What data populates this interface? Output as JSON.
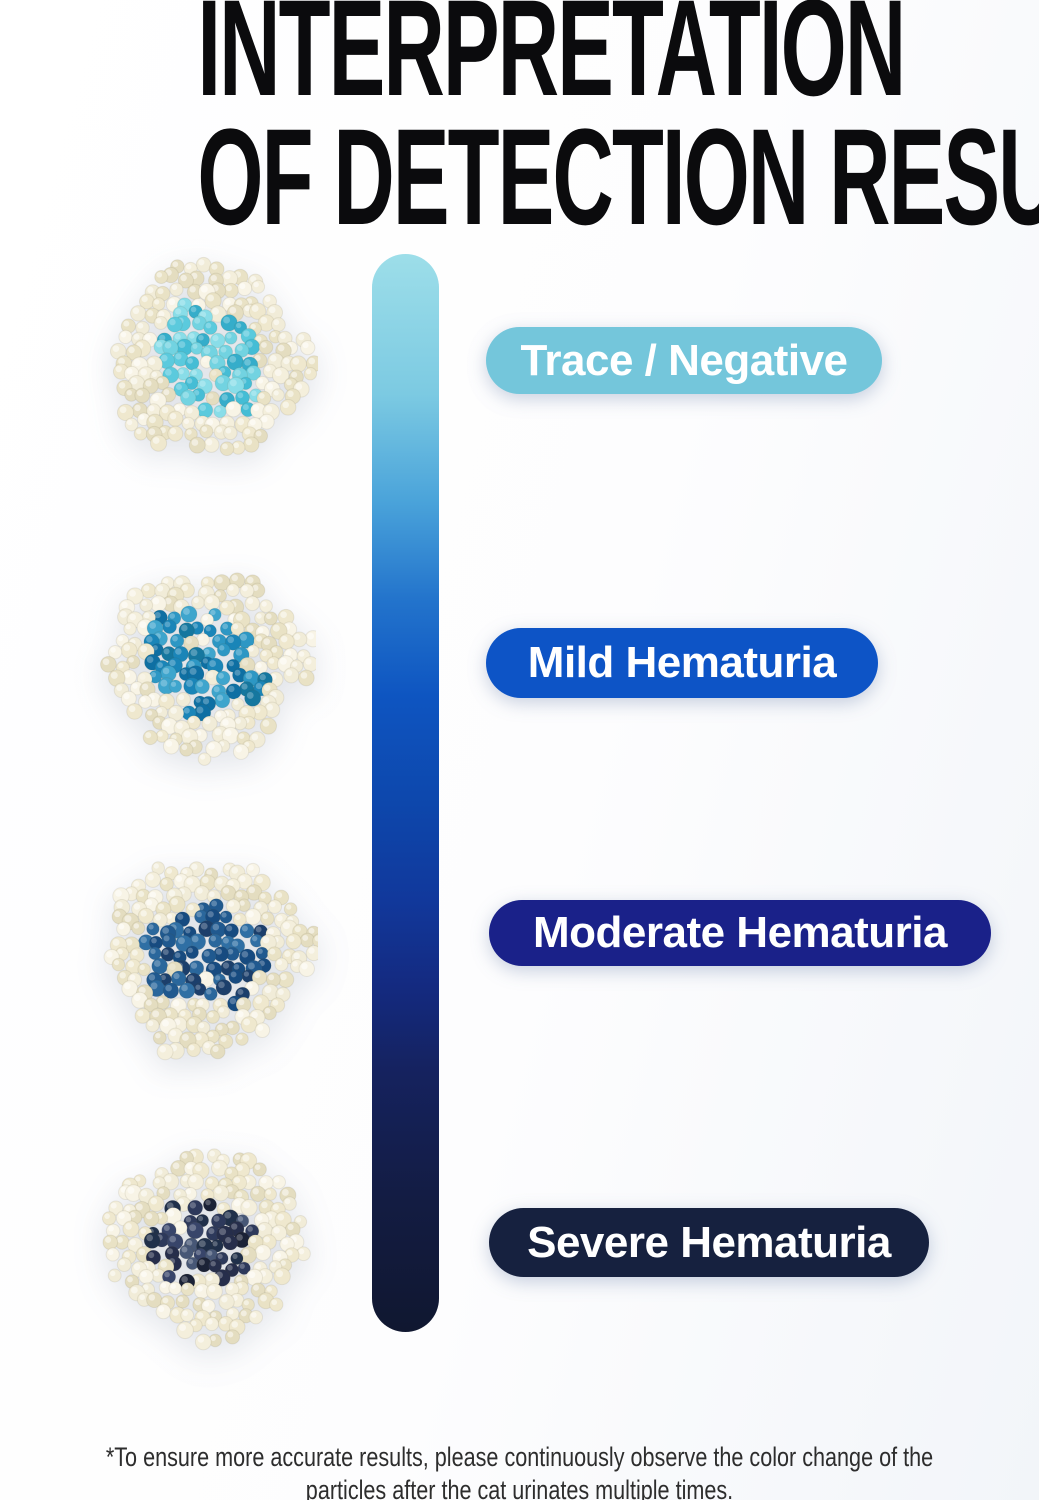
{
  "title": {
    "line1": "INTERPRETATION",
    "line2": "OF DETECTION RESULTS",
    "color": "#0b0b0d"
  },
  "levels": [
    {
      "id": "trace",
      "label": "Trace / Negative",
      "pill_color": "#74c6db",
      "core_colors": [
        "#45bdd5",
        "#5bcadd",
        "#35adca",
        "#72d3e1",
        "#89dde8"
      ]
    },
    {
      "id": "mild",
      "label": "Mild Hematuria",
      "pill_color": "#0d54c6",
      "core_colors": [
        "#1a85b8",
        "#0e6fa3",
        "#2d97c4",
        "#15779f",
        "#3ea5cd"
      ]
    },
    {
      "id": "moderate",
      "label": "Moderate Hematuria",
      "pill_color": "#1a2189",
      "core_colors": [
        "#20598f",
        "#2a679c",
        "#174b80",
        "#2f6fa4",
        "#1c3f6b"
      ]
    },
    {
      "id": "severe",
      "label": "Severe Hematuria",
      "pill_color": "#16213f",
      "core_colors": [
        "#262e4b",
        "#1b2236",
        "#38456a",
        "#2d395b",
        "#475776",
        "#20304a"
      ]
    }
  ],
  "litter_colors": [
    "#f4efdc",
    "#efe8ce",
    "#f8f4e6",
    "#e9e2c5",
    "#f1ecd8",
    "#e4ddc0"
  ],
  "scale_bar": {
    "stops": [
      {
        "c": "#9ddee9",
        "p": 0
      },
      {
        "c": "#7ccae2",
        "p": 13
      },
      {
        "c": "#4aa3da",
        "p": 23
      },
      {
        "c": "#2374cc",
        "p": 32
      },
      {
        "c": "#0e55c1",
        "p": 41
      },
      {
        "c": "#0d47ac",
        "p": 51
      },
      {
        "c": "#11389b",
        "p": 60
      },
      {
        "c": "#142a80",
        "p": 68
      },
      {
        "c": "#15225e",
        "p": 76
      },
      {
        "c": "#131c42",
        "p": 88
      },
      {
        "c": "#101730",
        "p": 100
      }
    ]
  },
  "footnote": {
    "line1": "*To ensure more accurate results, please continuously observe the color change of the",
    "line2": "particles after the cat urinates multiple times."
  }
}
